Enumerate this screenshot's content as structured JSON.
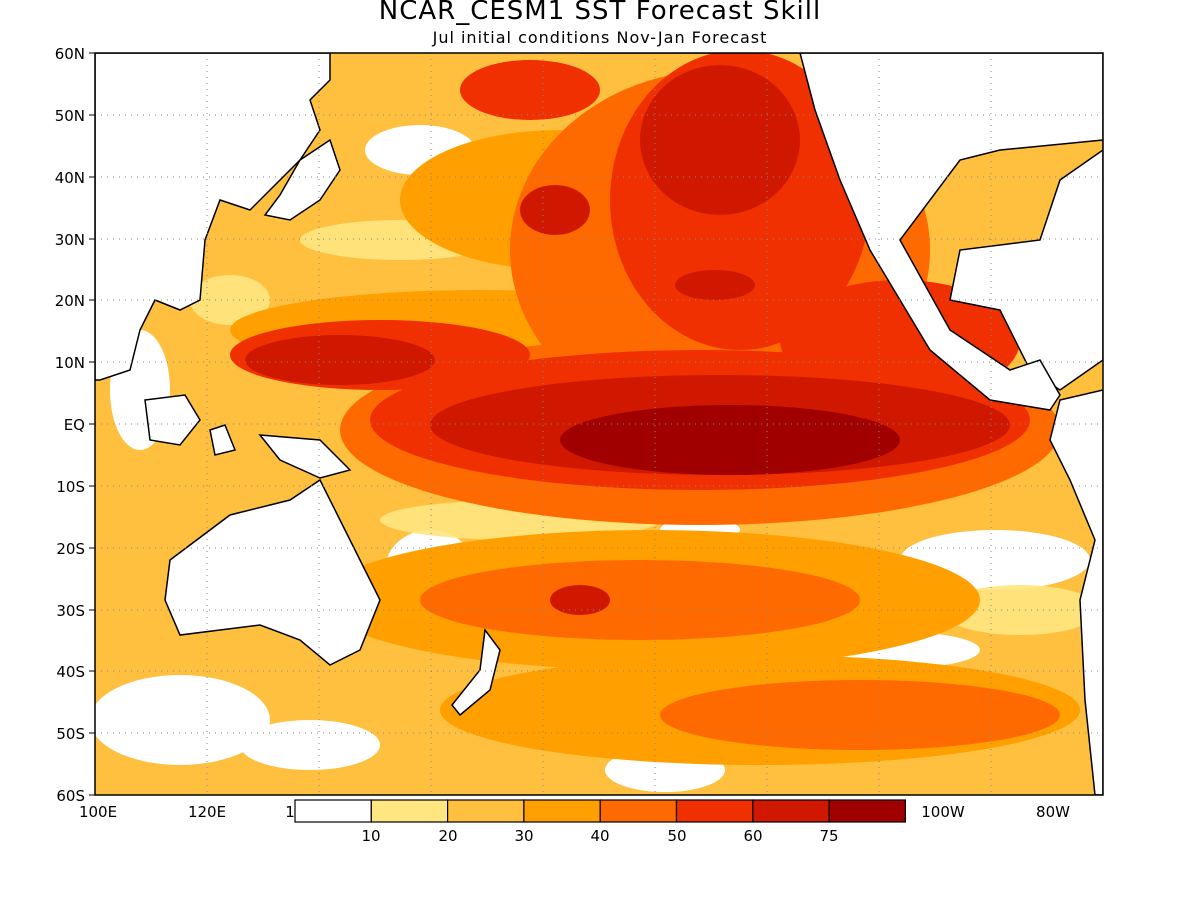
{
  "title": "NCAR_CESM1  SST Forecast Skill",
  "subtitle": "Jul initial conditions   Nov-Jan Forecast",
  "lat_labels": [
    "60N",
    "50N",
    "40N",
    "30N",
    "20N",
    "10N",
    "EQ",
    "10S",
    "20S",
    "30S",
    "40S",
    "50S",
    "60S"
  ],
  "lon_labels": [
    "100E",
    "120E",
    "1",
    "100W",
    "80W"
  ],
  "colorbar": {
    "labels": [
      "10",
      "20",
      "30",
      "40",
      "50",
      "60",
      "75"
    ],
    "colors": [
      "#ffffff",
      "#ffe680",
      "#ffc040",
      "#ffa000",
      "#ff6a00",
      "#f03000",
      "#d01800",
      "#a00000"
    ]
  },
  "colors": {
    "land": "#ffffff",
    "coast": "#000000",
    "grid": "#888888"
  }
}
